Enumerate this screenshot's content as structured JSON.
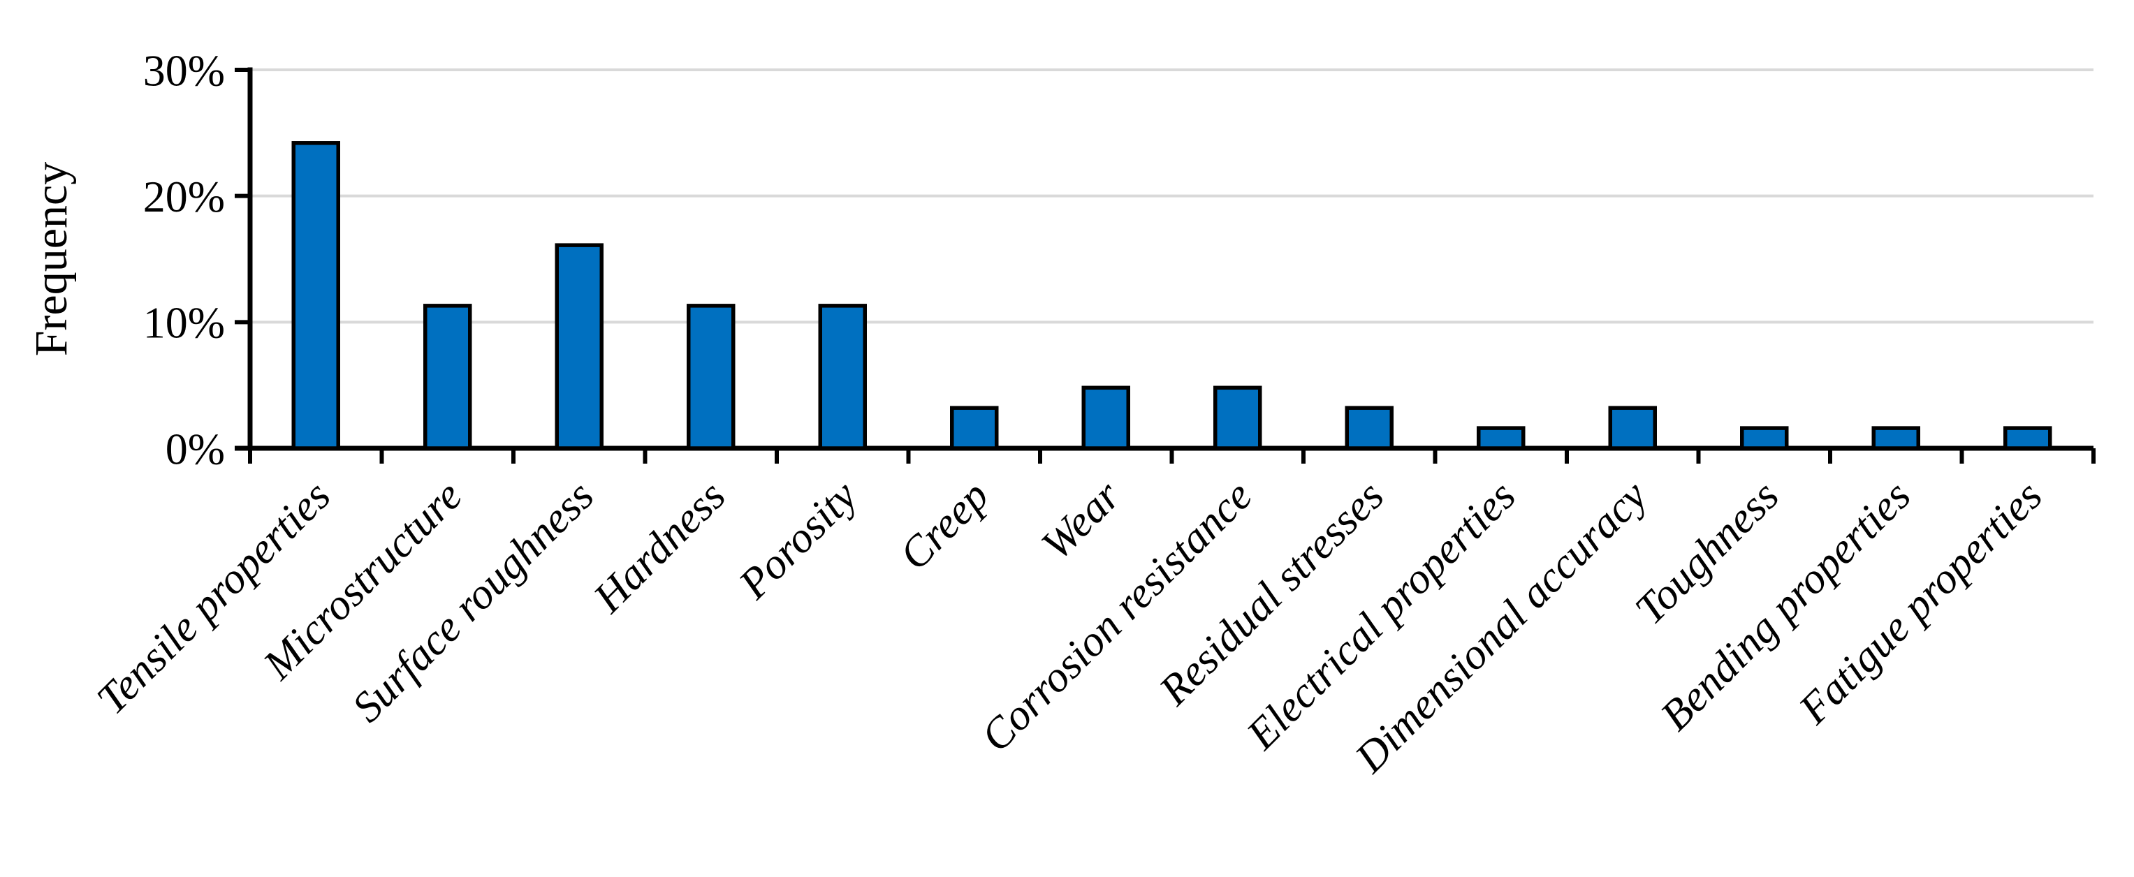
{
  "chart_data": {
    "type": "bar",
    "title": "",
    "ylabel": "Frequency",
    "xlabel": "",
    "categories": [
      "Tensile properties",
      "Microstructure",
      "Surface roughness",
      "Hardness",
      "Porosity",
      "Creep",
      "Wear",
      "Corrosion resistance",
      "Residual stresses",
      "Electrical properties",
      "Dimensional accuracy",
      "Toughness",
      "Bending properties",
      "Fatigue properties"
    ],
    "values": [
      24.2,
      11.3,
      16.1,
      11.3,
      11.3,
      3.2,
      4.8,
      4.8,
      3.2,
      1.6,
      3.2,
      1.6,
      1.6,
      1.6
    ],
    "unit": "%",
    "ylim": [
      0,
      30
    ],
    "ytick_values": [
      0,
      10,
      20,
      30
    ],
    "ytick_labels": [
      "0%",
      "10%",
      "20%",
      "30%"
    ],
    "grid": "horizontal-gridlines-at-10-20-30",
    "legend": "none",
    "bar_label_rotation_deg": -45,
    "colors": {
      "bar_fill": "#0070C0",
      "bar_outline": "#000000",
      "gridline": "#D9D9D9",
      "axis": "#000000",
      "text": "#000000",
      "background": "#FFFFFF"
    }
  }
}
